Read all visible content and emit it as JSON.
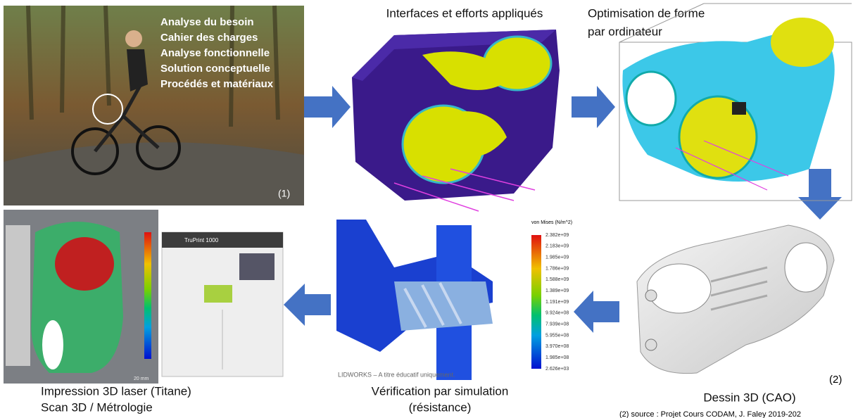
{
  "panels": {
    "design": {
      "lines": [
        "Analyse du besoin",
        "Cahier des charges",
        "Analyse fonctionnelle",
        "Solution conceptuelle",
        "Procédés et matériaux"
      ],
      "note": "(1)"
    },
    "interfaces": {
      "title": "Interfaces et efforts appliqués"
    },
    "optimisation": {
      "title_lines": [
        "Optimisation de forme",
        "par ordinateur"
      ]
    },
    "cad": {
      "caption": "Dessin 3D (CAO)",
      "note": "(2)",
      "source": "(2) source : Projet Cours CODAM, J. Faley 2019-202"
    },
    "simulation": {
      "caption_lines": [
        "Vérification par simulation",
        "(résistance)"
      ],
      "colorbar_title": "von Mises (N/m^2)",
      "colorbar_labels": [
        "2.382e+09",
        "2.183e+09",
        "1.985e+09",
        "1.786e+09",
        "1.588e+09",
        "1.389e+09",
        "1.191e+09",
        "9.924e+08",
        "7.939e+08",
        "5.955e+08",
        "3.970e+08",
        "1.985e+08",
        "2.626e+03"
      ],
      "watermark": "LIDWORKS – A titre éducatif uniquement."
    },
    "printing": {
      "caption_lines": [
        "Impression 3D laser (Titane)",
        "Scan 3D / Métrologie"
      ],
      "machine_label": "TruPrint 1000",
      "scale_label": "20 mm"
    }
  }
}
